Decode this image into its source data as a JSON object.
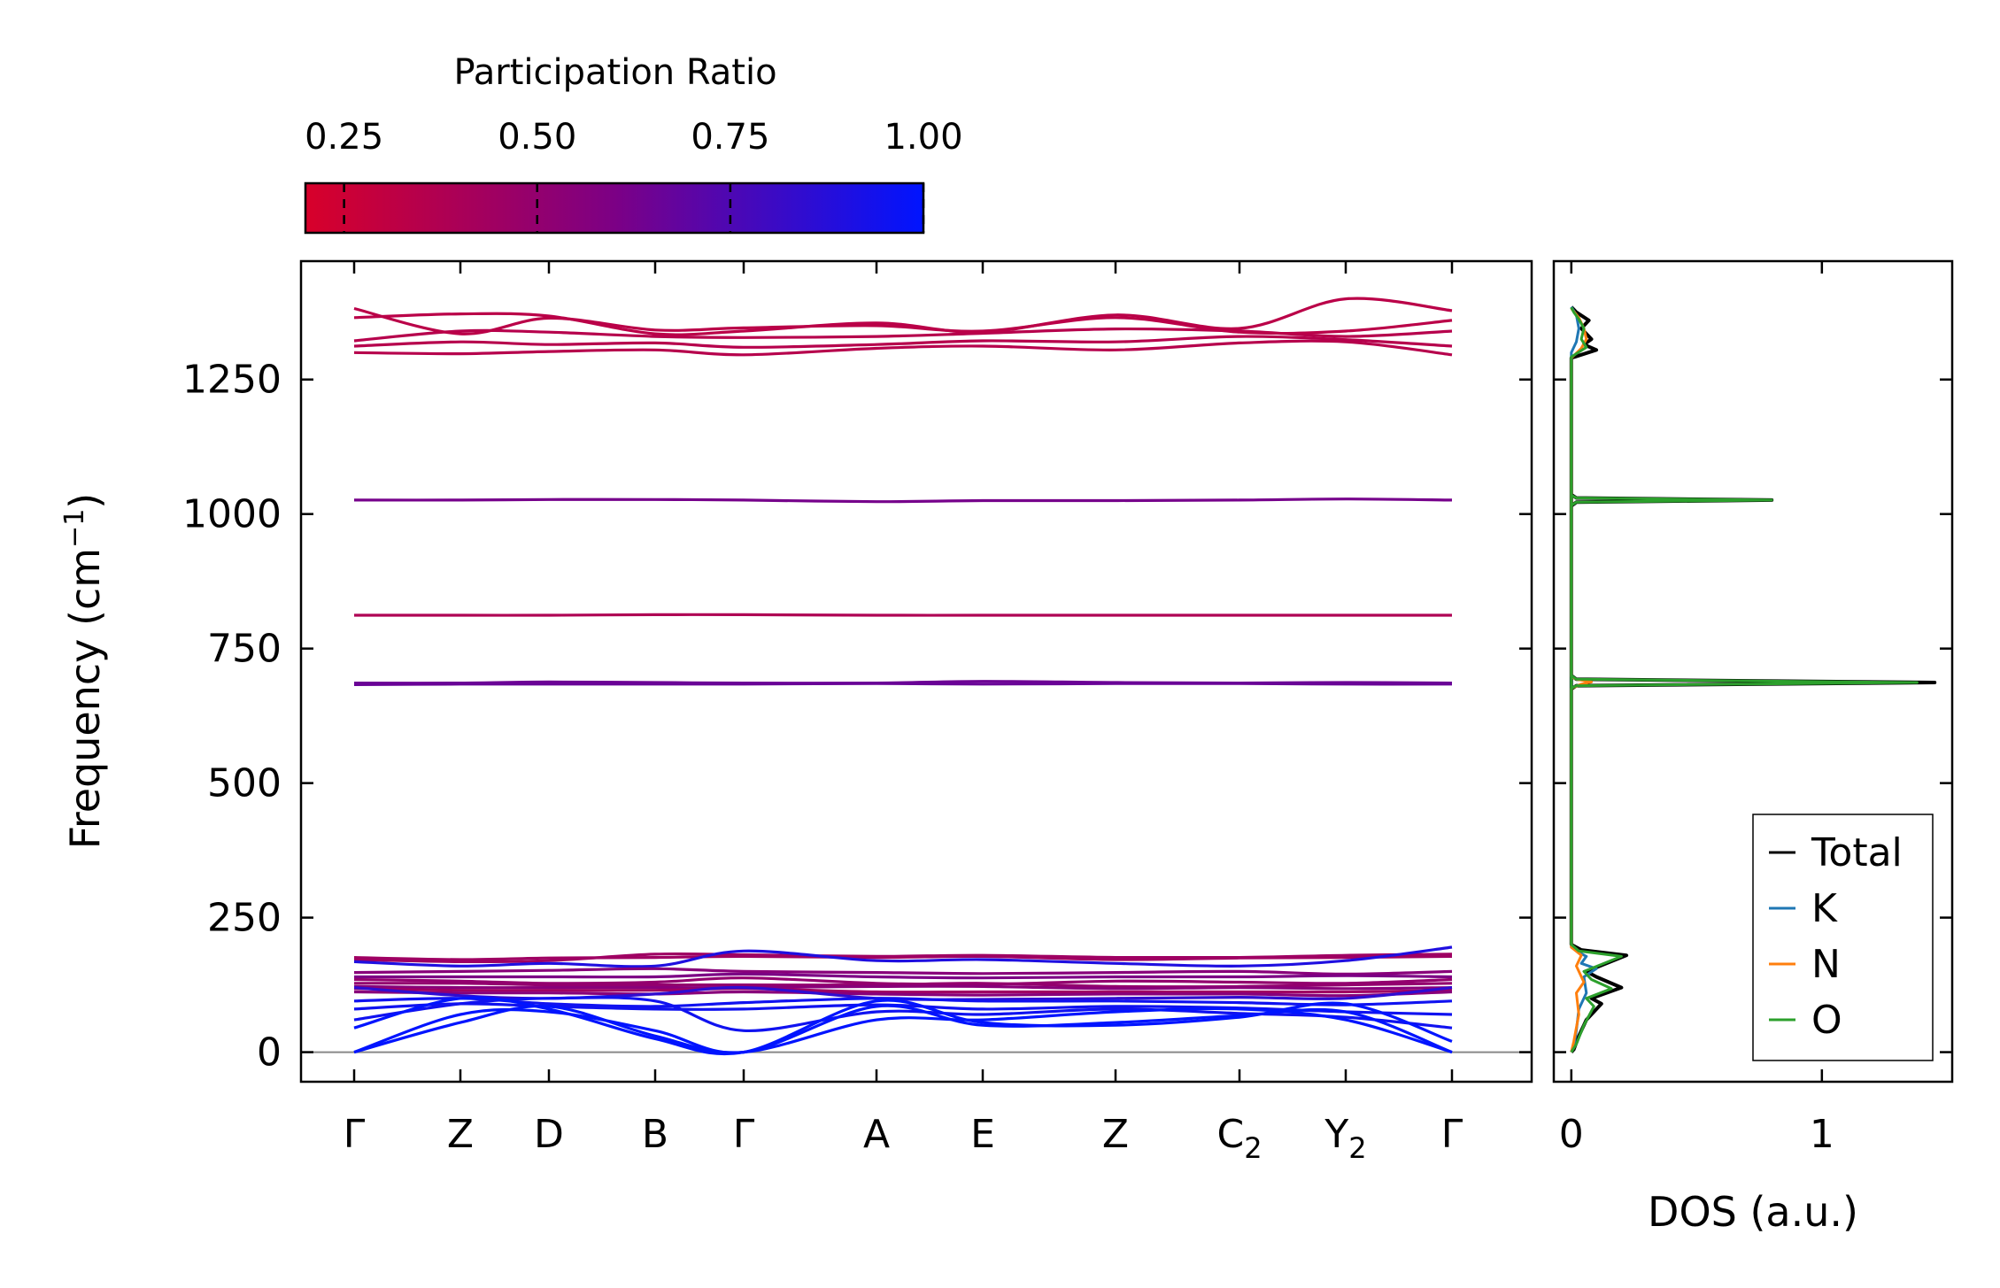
{
  "chart_data": [
    {
      "type": "line",
      "name": "phonon-band-structure",
      "ylabel_main": "Frequency (cm",
      "ylabel_sup": "−1",
      "ylabel_close": ")",
      "ylim": [
        -55,
        1470
      ],
      "yticks": [
        0,
        250,
        500,
        750,
        1000,
        1250
      ],
      "ytick_labels": [
        "0",
        "250",
        "500",
        "750",
        "1000",
        "1250"
      ],
      "kpoints": [
        {
          "pos": 0.0,
          "label": "Γ",
          "sub": ""
        },
        {
          "pos": 0.6,
          "label": "Z",
          "sub": ""
        },
        {
          "pos": 1.1,
          "label": "D",
          "sub": ""
        },
        {
          "pos": 1.7,
          "label": "B",
          "sub": ""
        },
        {
          "pos": 2.2,
          "label": "Γ",
          "sub": ""
        },
        {
          "pos": 2.95,
          "label": "A",
          "sub": ""
        },
        {
          "pos": 3.55,
          "label": "E",
          "sub": ""
        },
        {
          "pos": 4.3,
          "label": "Z",
          "sub": ""
        },
        {
          "pos": 5.0,
          "label": "C",
          "sub": "2"
        },
        {
          "pos": 5.6,
          "label": "Y",
          "sub": "2"
        },
        {
          "pos": 6.2,
          "label": "Γ",
          "sub": ""
        }
      ],
      "xlim": [
        -0.3,
        6.65
      ],
      "zero_line": 0,
      "bands": [
        {
          "pr": 0.35,
          "values": [
            1300,
            1298,
            1302,
            1305,
            1296,
            1308,
            1312,
            1305,
            1318,
            1320,
            1296
          ]
        },
        {
          "pr": 0.35,
          "values": [
            1312,
            1320,
            1315,
            1318,
            1310,
            1315,
            1322,
            1320,
            1330,
            1324,
            1312
          ]
        },
        {
          "pr": 0.35,
          "values": [
            1322,
            1340,
            1338,
            1330,
            1328,
            1330,
            1336,
            1344,
            1340,
            1330,
            1340
          ]
        },
        {
          "pr": 0.33,
          "values": [
            1365,
            1372,
            1368,
            1335,
            1340,
            1355,
            1338,
            1370,
            1345,
            1400,
            1378
          ]
        },
        {
          "pr": 0.33,
          "values": [
            1382,
            1335,
            1364,
            1342,
            1346,
            1350,
            1340,
            1365,
            1338,
            1340,
            1360
          ]
        },
        {
          "pr": 0.62,
          "values": [
            1026,
            1026,
            1027,
            1027,
            1026,
            1023,
            1025,
            1025,
            1026,
            1028,
            1026
          ]
        },
        {
          "pr": 0.38,
          "values": [
            812,
            812,
            812,
            813,
            813,
            812,
            812,
            812,
            812,
            812,
            812
          ]
        },
        {
          "pr": 0.65,
          "values": [
            686,
            686,
            688,
            687,
            686,
            686,
            689,
            687,
            686,
            687,
            686
          ]
        },
        {
          "pr": 0.66,
          "values": [
            683,
            684,
            684,
            684,
            684,
            685,
            684,
            685,
            685,
            684,
            684
          ]
        },
        {
          "pr": 0.45,
          "values": [
            176,
            172,
            175,
            176,
            178,
            176,
            178,
            172,
            175,
            176,
            178
          ]
        },
        {
          "pr": 0.45,
          "values": [
            172,
            168,
            170,
            182,
            181,
            178,
            180,
            176,
            176,
            180,
            182
          ]
        },
        {
          "pr": 0.9,
          "values": [
            168,
            160,
            165,
            160,
            188,
            170,
            172,
            165,
            160,
            170,
            195
          ]
        },
        {
          "pr": 0.55,
          "values": [
            148,
            150,
            152,
            155,
            150,
            148,
            146,
            148,
            150,
            145,
            150
          ]
        },
        {
          "pr": 0.6,
          "values": [
            140,
            140,
            140,
            140,
            145,
            140,
            138,
            140,
            140,
            142,
            140
          ]
        },
        {
          "pr": 0.5,
          "values": [
            135,
            132,
            128,
            130,
            138,
            128,
            126,
            132,
            130,
            128,
            135
          ]
        },
        {
          "pr": 0.5,
          "values": [
            128,
            128,
            125,
            125,
            125,
            125,
            128,
            122,
            122,
            125,
            128
          ]
        },
        {
          "pr": 0.55,
          "values": [
            122,
            120,
            120,
            120,
            120,
            122,
            122,
            118,
            120,
            118,
            120
          ]
        },
        {
          "pr": 0.45,
          "values": [
            118,
            115,
            115,
            115,
            118,
            112,
            112,
            112,
            112,
            112,
            115
          ]
        },
        {
          "pr": 0.55,
          "values": [
            112,
            110,
            110,
            108,
            112,
            108,
            106,
            108,
            108,
            105,
            112
          ]
        },
        {
          "pr": 0.85,
          "values": [
            120,
            105,
            100,
            108,
            120,
            100,
            98,
            100,
            102,
            100,
            120
          ]
        },
        {
          "pr": 0.95,
          "values": [
            95,
            100,
            90,
            85,
            92,
            100,
            95,
            95,
            92,
            88,
            95
          ]
        },
        {
          "pr": 0.95,
          "values": [
            80,
            90,
            85,
            80,
            80,
            88,
            80,
            85,
            82,
            75,
            70
          ]
        },
        {
          "pr": 0.95,
          "values": [
            60,
            90,
            100,
            95,
            40,
            75,
            70,
            80,
            72,
            65,
            45
          ]
        },
        {
          "pr": 1.0,
          "values": [
            0,
            55,
            85,
            30,
            0,
            60,
            60,
            75,
            80,
            60,
            0
          ]
        },
        {
          "pr": 1.0,
          "values": [
            0,
            70,
            75,
            40,
            0,
            85,
            50,
            55,
            68,
            75,
            0
          ]
        },
        {
          "pr": 1.0,
          "values": [
            45,
            100,
            80,
            25,
            0,
            95,
            55,
            50,
            65,
            90,
            20
          ]
        }
      ]
    },
    {
      "type": "line",
      "name": "density-of-states",
      "xlabel": "DOS (a.u.)",
      "xlim": [
        -0.07,
        1.52
      ],
      "xticks": [
        0,
        1
      ],
      "xtick_labels": [
        "0",
        "1"
      ],
      "ylim": [
        -55,
        1470
      ],
      "series": [
        {
          "name": "Total",
          "color": "#000000",
          "points": [
            [
              0,
              0
            ],
            [
              0.01,
              5
            ],
            [
              0.03,
              30
            ],
            [
              0.06,
              60
            ],
            [
              0.12,
              90
            ],
            [
              0.08,
              100
            ],
            [
              0.2,
              120
            ],
            [
              0.1,
              140
            ],
            [
              0.06,
              150
            ],
            [
              0.22,
              180
            ],
            [
              0.04,
              190
            ],
            [
              0,
              200
            ],
            [
              0,
              1015
            ],
            [
              0.02,
              1022
            ],
            [
              0.8,
              1026
            ],
            [
              0.02,
              1030
            ],
            [
              0,
              1036
            ],
            [
              0,
              675
            ],
            [
              0.02,
              681
            ],
            [
              1.45,
              687
            ],
            [
              0.02,
              693
            ],
            [
              0,
              700
            ],
            [
              0,
              1290
            ],
            [
              0.1,
              1305
            ],
            [
              0.05,
              1315
            ],
            [
              0.08,
              1325
            ],
            [
              0.04,
              1345
            ],
            [
              0.07,
              1360
            ],
            [
              0.02,
              1375
            ],
            [
              0,
              1385
            ]
          ]
        },
        {
          "name": "K",
          "color": "#1f77b4",
          "points": [
            [
              0,
              0
            ],
            [
              0.01,
              10
            ],
            [
              0.02,
              40
            ],
            [
              0.03,
              80
            ],
            [
              0.06,
              110
            ],
            [
              0.05,
              140
            ],
            [
              0.1,
              155
            ],
            [
              0.04,
              165
            ],
            [
              0.06,
              178
            ],
            [
              0.02,
              188
            ],
            [
              0,
              195
            ],
            [
              0,
              1300
            ],
            [
              0.02,
              1320
            ],
            [
              0.03,
              1345
            ],
            [
              0.02,
              1370
            ],
            [
              0,
              1385
            ]
          ]
        },
        {
          "name": "N",
          "color": "#ff7f0e",
          "points": [
            [
              0,
              0
            ],
            [
              0.01,
              20
            ],
            [
              0.03,
              70
            ],
            [
              0.02,
              110
            ],
            [
              0.05,
              130
            ],
            [
              0.02,
              160
            ],
            [
              0.04,
              180
            ],
            [
              0,
              195
            ],
            [
              0,
              676
            ],
            [
              0.04,
              684
            ],
            [
              0.08,
              688
            ],
            [
              0.02,
              693
            ],
            [
              0,
              698
            ],
            [
              0,
              1290
            ],
            [
              0.04,
              1308
            ],
            [
              0.06,
              1325
            ],
            [
              0.05,
              1345
            ],
            [
              0.03,
              1365
            ],
            [
              0,
              1382
            ]
          ]
        },
        {
          "name": "O",
          "color": "#2ca02c",
          "points": [
            [
              0,
              0
            ],
            [
              0.02,
              15
            ],
            [
              0.05,
              50
            ],
            [
              0.09,
              85
            ],
            [
              0.06,
              100
            ],
            [
              0.16,
              118
            ],
            [
              0.08,
              135
            ],
            [
              0.05,
              150
            ],
            [
              0.2,
              178
            ],
            [
              0.03,
              188
            ],
            [
              0,
              200
            ],
            [
              0,
              1016
            ],
            [
              0.02,
              1022
            ],
            [
              0.8,
              1026
            ],
            [
              0.02,
              1030
            ],
            [
              0,
              1035
            ],
            [
              0,
              676
            ],
            [
              0.02,
              681
            ],
            [
              1.38,
              687
            ],
            [
              0.02,
              693
            ],
            [
              0,
              700
            ],
            [
              0,
              1292
            ],
            [
              0.06,
              1310
            ],
            [
              0.04,
              1325
            ],
            [
              0.05,
              1345
            ],
            [
              0.03,
              1362
            ],
            [
              0.01,
              1375
            ],
            [
              0,
              1384
            ]
          ]
        }
      ],
      "legend_position": "bottom-right"
    }
  ],
  "colorbar": {
    "title": "Participation Ratio",
    "range": [
      0.2,
      1.0
    ],
    "ticks": [
      0.25,
      0.5,
      0.75,
      1.0
    ],
    "tick_labels": [
      "0.25",
      "0.50",
      "0.75",
      "1.00"
    ],
    "color_low": "#d8002a",
    "color_mid": "#7c0085",
    "color_high": "#0014ff"
  }
}
